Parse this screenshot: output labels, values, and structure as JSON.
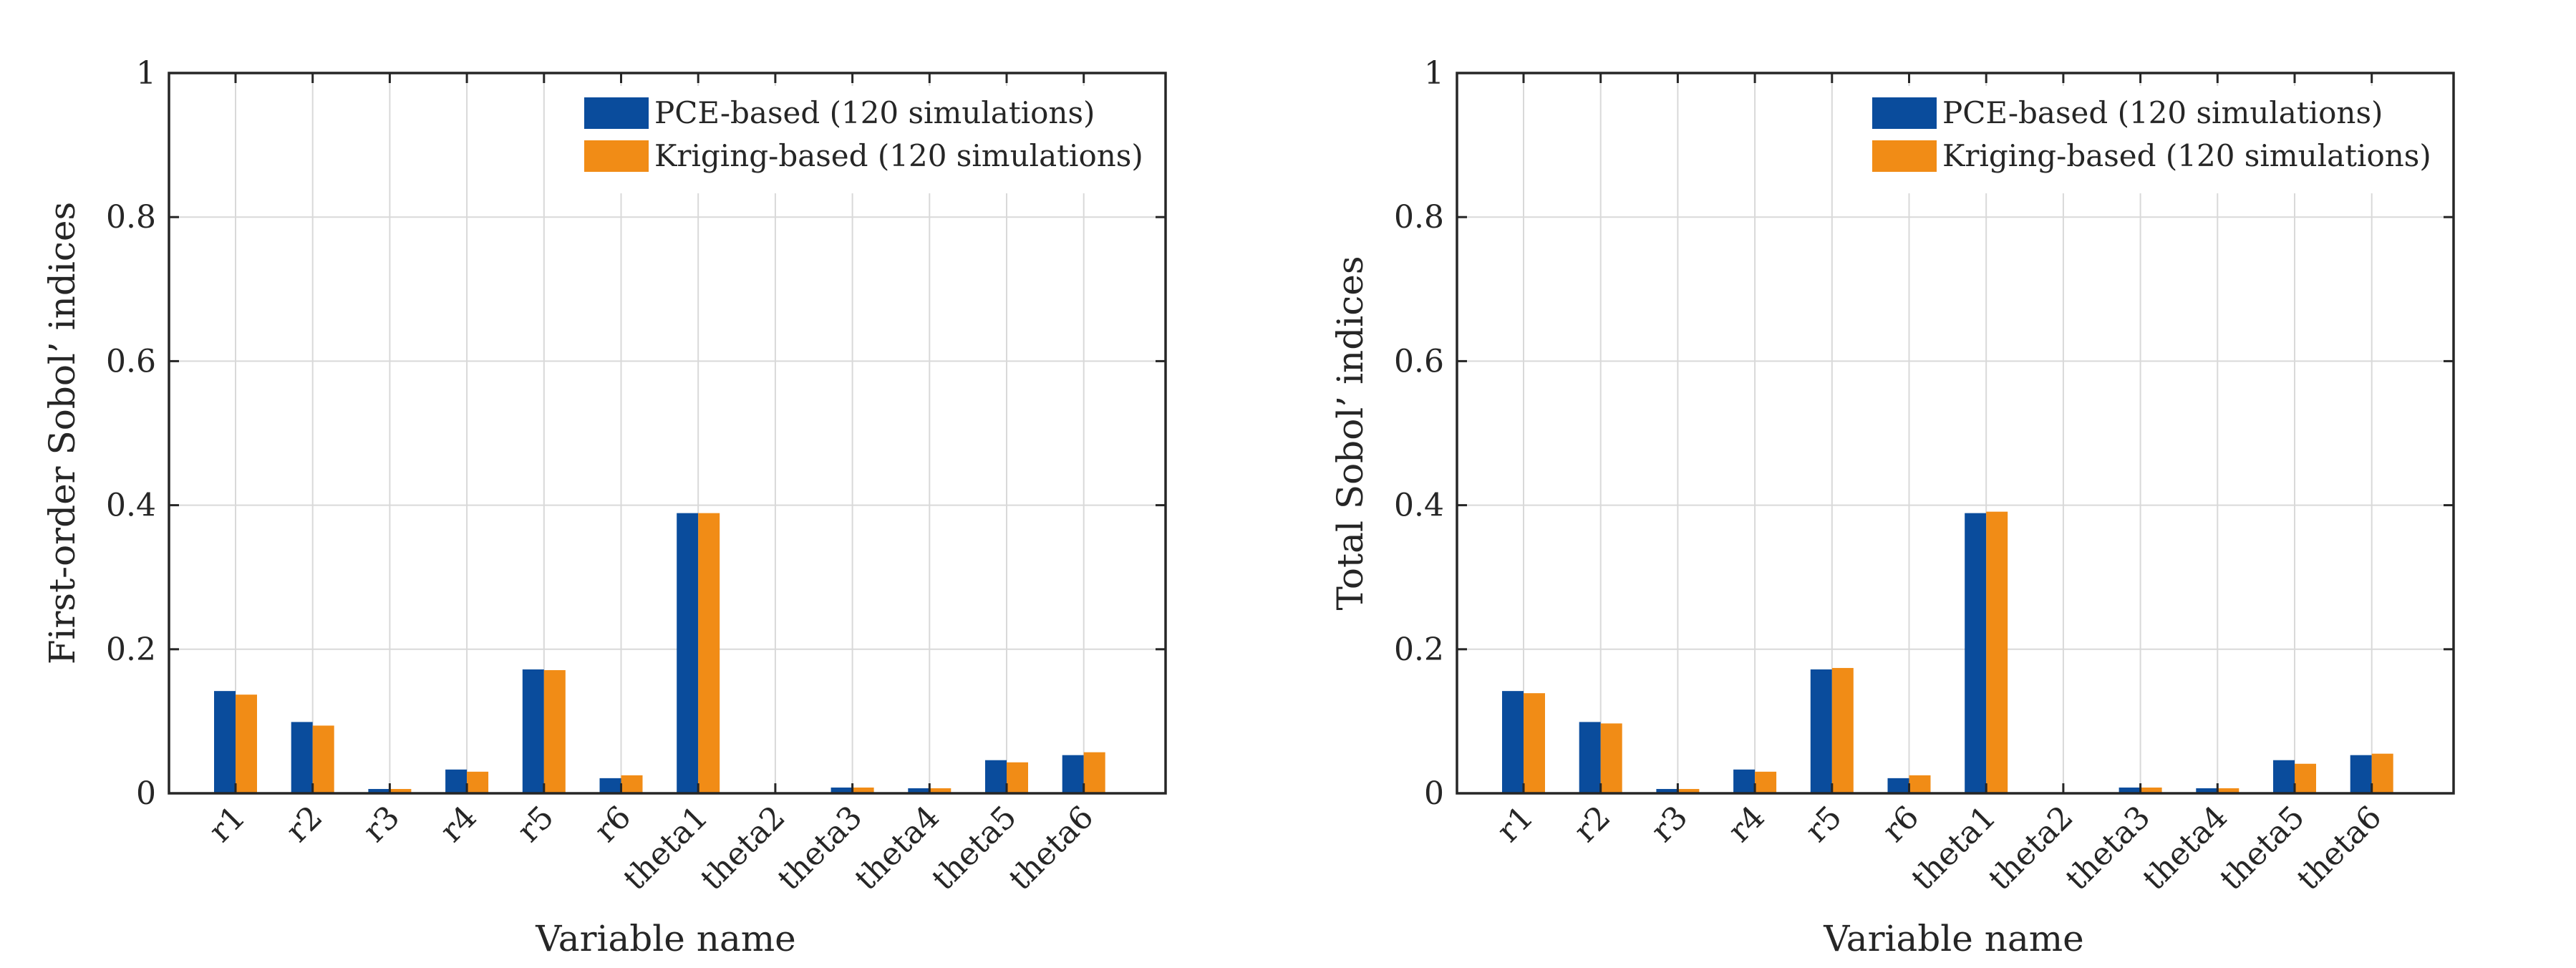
{
  "colors": {
    "pce": "#0A4C9C",
    "kriging": "#F18C16",
    "grid": "#D9D9D9",
    "axis": "#262626"
  },
  "chart_data": [
    {
      "type": "bar",
      "categories": [
        "r1",
        "r2",
        "r3",
        "r4",
        "r5",
        "r6",
        "theta1",
        "theta2",
        "theta3",
        "theta4",
        "theta5",
        "theta6"
      ],
      "series": [
        {
          "name": "PCE-based (120 simulations)",
          "values": [
            0.142,
            0.099,
            0.006,
            0.033,
            0.172,
            0.021,
            0.389,
            0.001,
            0.008,
            0.007,
            0.046,
            0.053
          ]
        },
        {
          "name": "Kriging-based (120 simulations)",
          "values": [
            0.137,
            0.094,
            0.006,
            0.03,
            0.171,
            0.025,
            0.389,
            0.001,
            0.008,
            0.007,
            0.043,
            0.057
          ]
        }
      ],
      "xlabel": "Variable name",
      "ylabel": "First-order Sobol’ indices",
      "ylim": [
        0,
        1
      ],
      "yticks": [
        "0",
        "0.2",
        "0.4",
        "0.6",
        "0.8",
        "1"
      ],
      "grid": true,
      "legend": "top-right"
    },
    {
      "type": "bar",
      "categories": [
        "r1",
        "r2",
        "r3",
        "r4",
        "r5",
        "r6",
        "theta1",
        "theta2",
        "theta3",
        "theta4",
        "theta5",
        "theta6"
      ],
      "series": [
        {
          "name": "PCE-based (120 simulations)",
          "values": [
            0.142,
            0.099,
            0.006,
            0.033,
            0.172,
            0.021,
            0.389,
            0.001,
            0.008,
            0.007,
            0.046,
            0.053
          ]
        },
        {
          "name": "Kriging-based (120 simulations)",
          "values": [
            0.139,
            0.097,
            0.006,
            0.03,
            0.174,
            0.025,
            0.391,
            0.001,
            0.008,
            0.007,
            0.041,
            0.055
          ]
        }
      ],
      "xlabel": "Variable name",
      "ylabel": "Total Sobol’ indices",
      "ylim": [
        0,
        1
      ],
      "yticks": [
        "0",
        "0.2",
        "0.4",
        "0.6",
        "0.8",
        "1"
      ],
      "grid": true,
      "legend": "top-right"
    }
  ]
}
